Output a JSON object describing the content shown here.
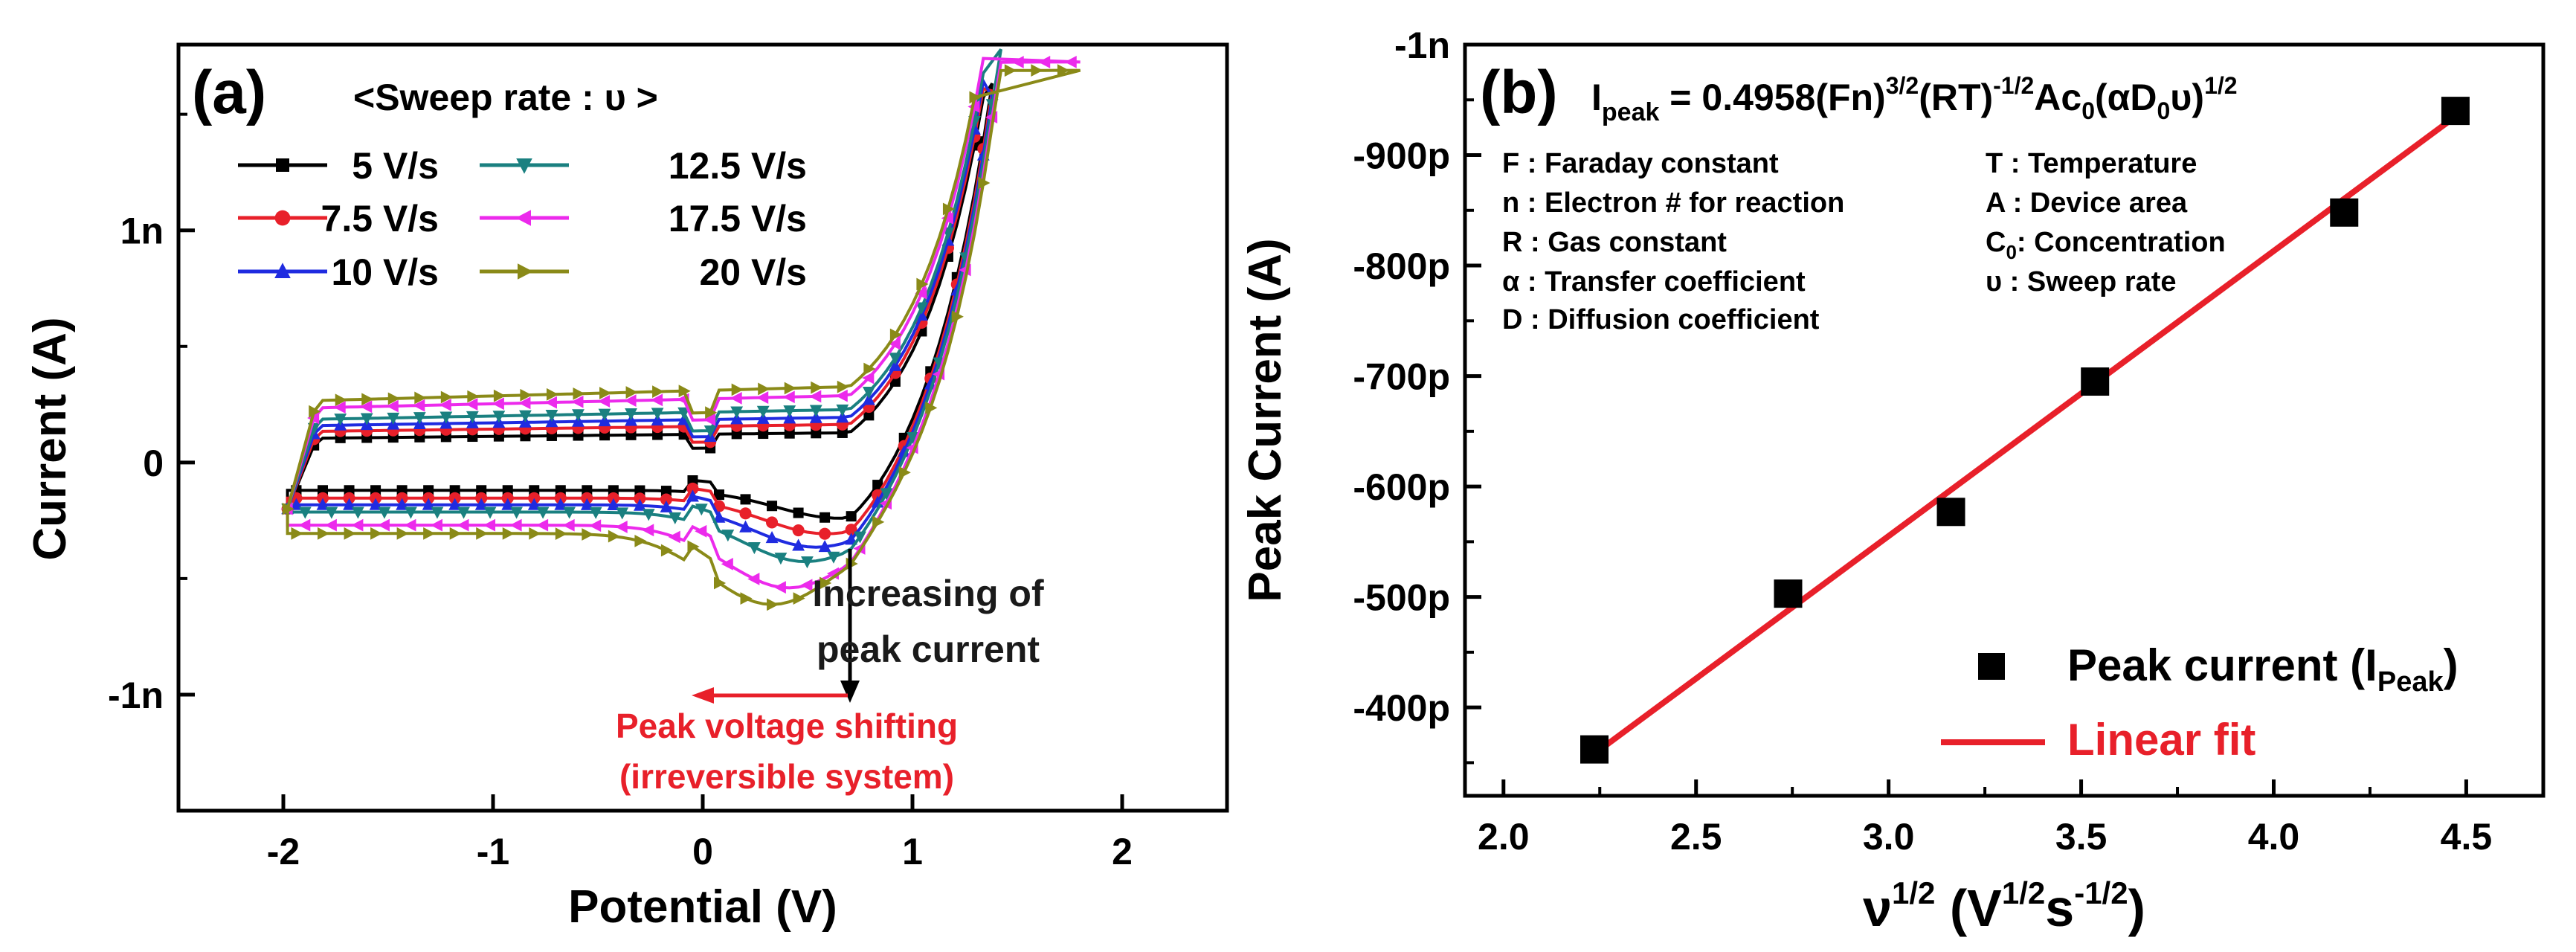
{
  "chart_data": [
    {
      "type": "line",
      "panel_label": "(a)",
      "xlabel": "Potential (V)",
      "ylabel": "Current (A)",
      "xlim": [
        -2.5,
        2.5
      ],
      "ylim": [
        -1.5,
        1.8
      ],
      "x_ticks": [
        -2,
        -1,
        0,
        1,
        2
      ],
      "x_tick_labels": [
        "-2",
        "-1",
        "0",
        "1",
        "2"
      ],
      "y_ticks": [
        -1,
        0,
        1
      ],
      "y_tick_labels": [
        "-1n",
        "0",
        "1n"
      ],
      "legend_title": "<Sweep rate : υ >",
      "legend_position": "top-left",
      "series": [
        {
          "name": "5 V/s",
          "label": "5 V/s",
          "color": "#000000",
          "marker": "square",
          "scale": 1.0,
          "peak_x": 0.65
        },
        {
          "name": "7.5 V/s",
          "label": "7.5 V/s",
          "color": "#e8202a",
          "marker": "circle",
          "scale": 1.28,
          "peak_x": 0.59
        },
        {
          "name": "10 V/s",
          "label": "10 V/s",
          "color": "#1f2be0",
          "marker": "triangle-up",
          "scale": 1.52,
          "peak_x": 0.54
        },
        {
          "name": "12.5 V/s",
          "label": "12.5 V/s",
          "color": "#1a8080",
          "marker": "triangle-down",
          "scale": 1.78,
          "peak_x": 0.49
        },
        {
          "name": "17.5 V/s",
          "label": "17.5 V/s",
          "color": "#ec2aec",
          "marker": "triangle-left",
          "scale": 2.25,
          "peak_x": 0.41
        },
        {
          "name": "20 V/s",
          "label": "20 V/s",
          "color": "#8a8a18",
          "marker": "triangle-right",
          "scale": 2.55,
          "peak_x": 0.33
        }
      ],
      "annotations": {
        "peak_current": [
          "Increasing of",
          "peak current"
        ],
        "peak_shift": [
          "Peak voltage shifting",
          "(irreversible system)"
        ]
      },
      "annotation_colors": {
        "peak_current": "#1a1a1a",
        "peak_shift": "#e8202a"
      }
    },
    {
      "type": "scatter",
      "panel_label": "(b)",
      "xlabel": "ν1/2 (V1/2s-1/2)",
      "xlabel_parts": {
        "nu": "ν",
        "p1": "1/2",
        "open": " (V",
        "p2": "1/2",
        "s": "s",
        "p3": "-1/2",
        "close": ")"
      },
      "ylabel": "Peak Current (A)",
      "xlim": [
        1.9,
        4.7
      ],
      "ylim": [
        -320,
        -1000
      ],
      "x_ticks": [
        2.0,
        2.5,
        3.0,
        3.5,
        4.0,
        4.5
      ],
      "x_tick_labels": [
        "2.0",
        "2.5",
        "3.0",
        "3.5",
        "4.0",
        "4.5"
      ],
      "y_ticks": [
        -400,
        -500,
        -600,
        -700,
        -800,
        -900,
        -1000
      ],
      "y_tick_labels": [
        "-400p",
        "-500p",
        "-600p",
        "-700p",
        "-800p",
        "-900p",
        "-1n"
      ],
      "x": [
        2.236,
        2.739,
        3.162,
        3.536,
        4.183,
        4.472
      ],
      "values": [
        -362,
        -503,
        -577,
        -695,
        -848,
        -940
      ],
      "fit": {
        "x": [
          2.236,
          4.472
        ],
        "y": [
          -358,
          -935
        ]
      },
      "series": [
        {
          "name": "Peak current (IPeak)",
          "label_main": "Peak current (I",
          "label_sub": "Peak",
          "label_end": ")",
          "color": "#000000"
        },
        {
          "name": "Linear fit",
          "label": "Linear fit",
          "color": "#e8202a"
        }
      ],
      "legend_position": "bottom-right",
      "equation": {
        "I": "I",
        "peak": "peak",
        "a": " = 0.4958(Fn)",
        "e1": "3/2",
        "b": "(RT)",
        "e2": "-1/2",
        "c": "Ac",
        "s1": "0",
        "d": "(αD",
        "s2": "0",
        "e": "υ)",
        "e3": "1/2"
      },
      "definitions_left": [
        "F : Faraday constant",
        "n : Electron # for reaction",
        "R : Gas constant",
        "α : Transfer coefficient",
        "D : Diffusion coefficient"
      ],
      "definitions_right": {
        "t": "T : Temperature",
        "a": "A : Device area",
        "c_main": "C",
        "c_sub": "0",
        "c_rest": ": Concentration",
        "u": "υ  :  Sweep rate"
      }
    }
  ]
}
